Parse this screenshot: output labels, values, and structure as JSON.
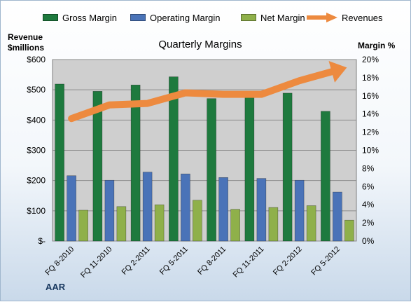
{
  "legend": {
    "gross": "Gross Margin",
    "operating": "Operating Margin",
    "net": "Net Margin",
    "revenues": "Revenues"
  },
  "left_axis_title": [
    "Revenue",
    "$millions"
  ],
  "right_axis_title": "Margin %",
  "company": "AAR",
  "colors": {
    "gross": "#1e7a3e",
    "operating": "#4a73b8",
    "net": "#8fb04a",
    "revenues": "#ed8a3f",
    "plot_bg": "#cfcfcf"
  },
  "chart_data": {
    "type": "bar",
    "title": "Quarterly Margins",
    "categories": [
      "FQ 8-2010",
      "FQ 11-2010",
      "FQ 2-2011",
      "FQ 5-2011",
      "FQ 8-2011",
      "FQ 11-2011",
      "FQ 2-2012",
      "FQ 5-2012"
    ],
    "series": [
      {
        "name": "Gross Margin",
        "axis": "right",
        "values": [
          17.3,
          16.5,
          17.2,
          18.1,
          15.7,
          16.2,
          16.3,
          14.3
        ]
      },
      {
        "name": "Operating Margin",
        "axis": "right",
        "values": [
          7.2,
          6.7,
          7.6,
          7.4,
          7.0,
          6.9,
          6.7,
          5.4
        ]
      },
      {
        "name": "Net Margin",
        "axis": "right",
        "values": [
          3.4,
          3.8,
          4.0,
          4.5,
          3.5,
          3.7,
          3.9,
          2.3
        ]
      },
      {
        "name": "Revenues",
        "type": "line",
        "axis": "left",
        "values": [
          405,
          450,
          455,
          490,
          485,
          485,
          530,
          565
        ]
      }
    ],
    "left_axis": {
      "ylim": [
        0,
        600
      ],
      "ticks": [
        0,
        100,
        200,
        300,
        400,
        500,
        600
      ],
      "tick_labels": [
        "$-",
        "$100",
        "$200",
        "$300",
        "$400",
        "$500",
        "$600"
      ]
    },
    "right_axis": {
      "ylim": [
        0,
        20
      ],
      "ticks": [
        0,
        2,
        4,
        6,
        8,
        10,
        12,
        14,
        16,
        18,
        20
      ],
      "tick_labels": [
        "0%",
        "2%",
        "4%",
        "6%",
        "8%",
        "10%",
        "12%",
        "14%",
        "16%",
        "18%",
        "20%"
      ]
    },
    "grid": true,
    "legend_position": "top"
  }
}
